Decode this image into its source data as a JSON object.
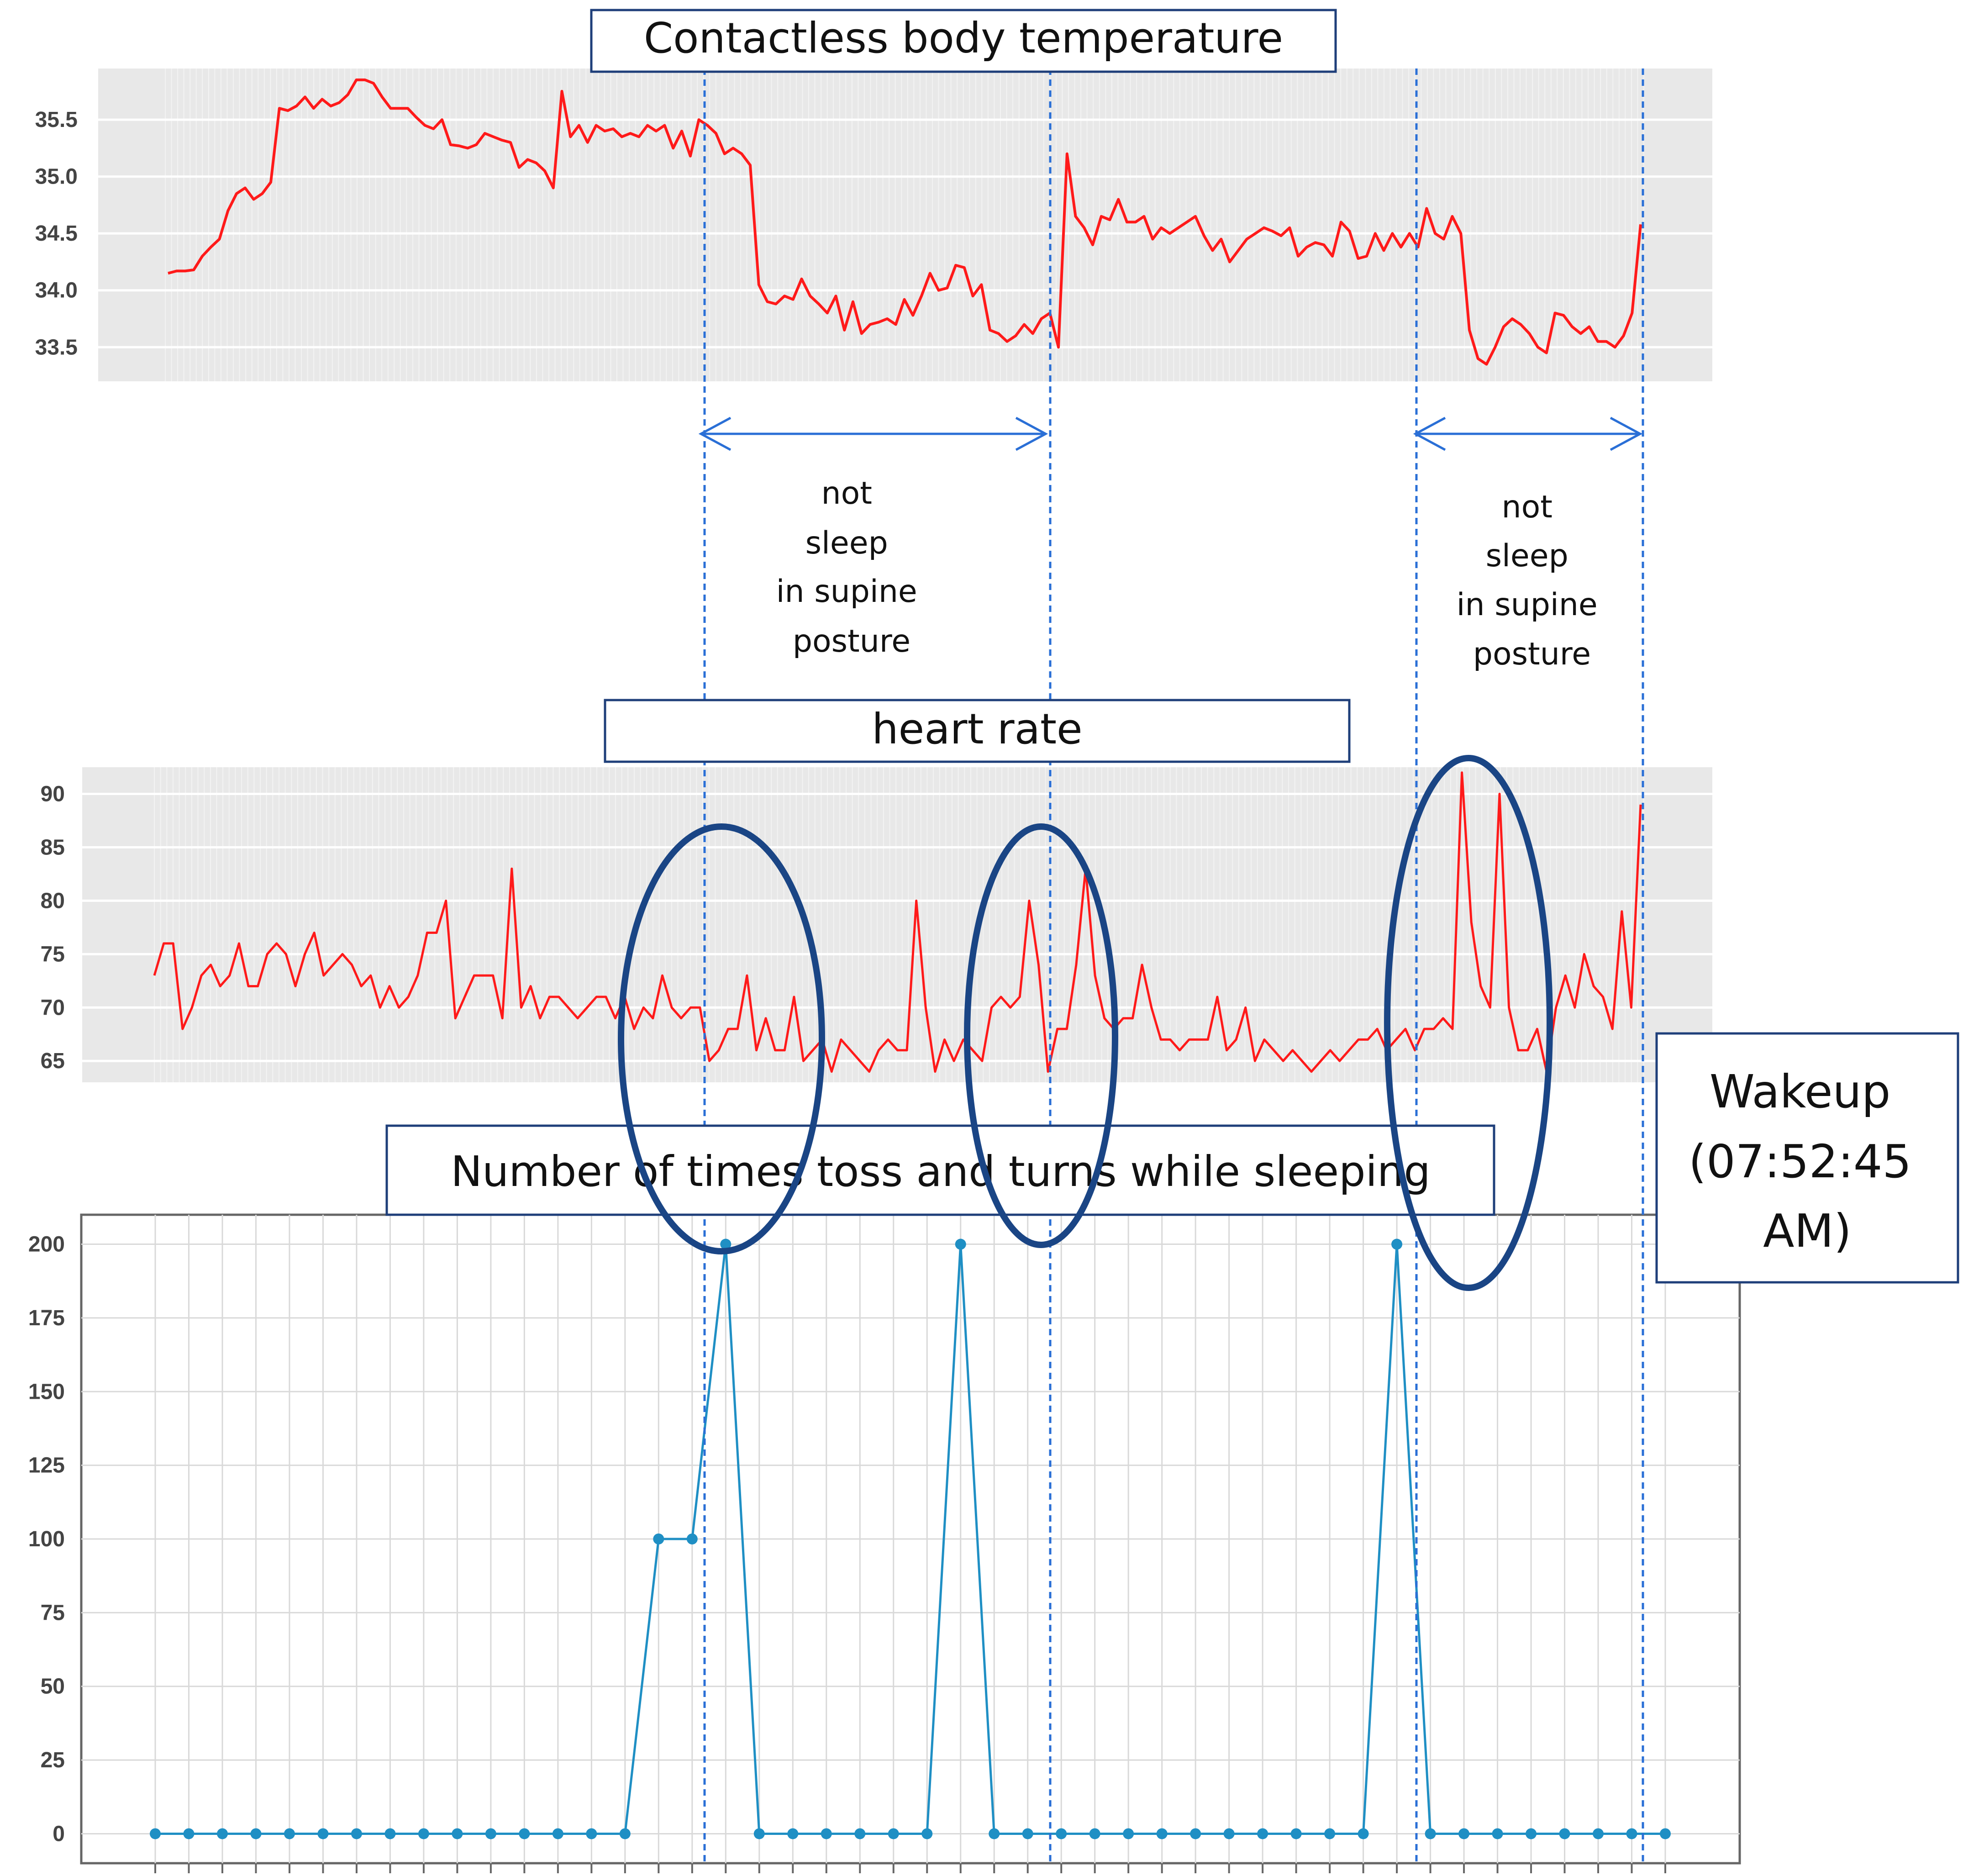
{
  "charts": {
    "temperature": {
      "title": "Contactless body temperature",
      "yticks": [
        "35.5",
        "35.0",
        "34.5",
        "34.0",
        "33.5"
      ]
    },
    "heart_rate": {
      "title": "heart rate",
      "yticks": [
        "90",
        "85",
        "80",
        "75",
        "70",
        "65"
      ]
    },
    "toss_turns": {
      "title": "Number of times toss and turns while sleeping",
      "yticks": [
        "200",
        "175",
        "150",
        "125",
        "100",
        "75",
        "50",
        "25",
        "0"
      ]
    }
  },
  "annotations": {
    "not_sleep_1": [
      "not",
      "sleep",
      "in  supine",
      "posture"
    ],
    "not_sleep_2": [
      "not",
      "sleep",
      "in  supine",
      "posture"
    ],
    "wakeup": [
      "Wakeup",
      "(07:52:45",
      "AM)"
    ]
  },
  "colors": {
    "temperature_line": "#ff1a1a",
    "heart_rate_line": "#ff1a1a",
    "toss_line": "#1f8fc4",
    "ellipse": "#1a4585",
    "guide_line": "#2a6fd6",
    "plot_bg": "#e8e8e8"
  },
  "chart_data": [
    {
      "type": "line",
      "title": "Contactless body temperature",
      "xlabel": "",
      "ylabel": "",
      "ylim": [
        33.2,
        35.95
      ],
      "grid": true,
      "series": [
        {
          "values": [
            34.15,
            34.17,
            34.17,
            34.18,
            34.3,
            34.38,
            34.45,
            34.7,
            34.85,
            34.9,
            34.8,
            34.85,
            34.95,
            35.6,
            35.58,
            35.62,
            35.7,
            35.6,
            35.68,
            35.62,
            35.65,
            35.72,
            35.85,
            35.85,
            35.82,
            35.7,
            35.6,
            35.6,
            35.6,
            35.52,
            35.45,
            35.42,
            35.5,
            35.28,
            35.27,
            35.25,
            35.28,
            35.38,
            35.35,
            35.32,
            35.3,
            35.08,
            35.15,
            35.12,
            35.05,
            34.9,
            35.75,
            35.35,
            35.45,
            35.3,
            35.45,
            35.4,
            35.42,
            35.35,
            35.38,
            35.35,
            35.45,
            35.4,
            35.45,
            35.25,
            35.4,
            35.18,
            35.5,
            35.45,
            35.38,
            35.2,
            35.25,
            35.2,
            35.1,
            34.05,
            33.9,
            33.88,
            33.95,
            33.92,
            34.1,
            33.95,
            33.88,
            33.8,
            33.95,
            33.65,
            33.9,
            33.62,
            33.7,
            33.72,
            33.75,
            33.7,
            33.92,
            33.78,
            33.95,
            34.15,
            34.0,
            34.02,
            34.22,
            34.2,
            33.95,
            34.05,
            33.65,
            33.62,
            33.55,
            33.6,
            33.7,
            33.62,
            33.75,
            33.8,
            33.5,
            35.2,
            34.65,
            34.55,
            34.4,
            34.65,
            34.62,
            34.8,
            34.6,
            34.6,
            34.65,
            34.45,
            34.55,
            34.5,
            34.55,
            34.6,
            34.65,
            34.48,
            34.35,
            34.45,
            34.25,
            34.35,
            34.45,
            34.5,
            34.55,
            34.52,
            34.48,
            34.55,
            34.3,
            34.38,
            34.42,
            34.4,
            34.3,
            34.6,
            34.52,
            34.28,
            34.3,
            34.5,
            34.35,
            34.5,
            34.38,
            34.5,
            34.38,
            34.72,
            34.5,
            34.45,
            34.65,
            34.5,
            33.65,
            33.4,
            33.35,
            33.5,
            33.68,
            33.75,
            33.7,
            33.62,
            33.5,
            33.45,
            33.8,
            33.78,
            33.68,
            33.62,
            33.68,
            33.55,
            33.55,
            33.5,
            33.6,
            33.8,
            34.58
          ]
        }
      ]
    },
    {
      "type": "line",
      "title": "heart rate",
      "xlabel": "",
      "ylabel": "",
      "ylim": [
        63,
        92.5
      ],
      "grid": true,
      "series": [
        {
          "values": [
            73,
            76,
            76,
            68,
            70,
            73,
            74,
            72,
            73,
            76,
            72,
            72,
            75,
            76,
            75,
            72,
            75,
            77,
            73,
            74,
            75,
            74,
            72,
            73,
            70,
            72,
            70,
            71,
            73,
            77,
            77,
            80,
            69,
            71,
            73,
            73,
            73,
            69,
            83,
            70,
            72,
            69,
            71,
            71,
            70,
            69,
            70,
            71,
            71,
            69,
            71,
            68,
            70,
            69,
            73,
            70,
            69,
            70,
            70,
            65,
            66,
            68,
            68,
            73,
            66,
            69,
            66,
            66,
            71,
            65,
            66,
            67,
            64,
            67,
            66,
            65,
            64,
            66,
            67,
            66,
            66,
            80,
            70,
            64,
            67,
            65,
            67,
            66,
            65,
            70,
            71,
            70,
            71,
            80,
            74,
            64,
            68,
            68,
            74,
            83,
            73,
            69,
            68,
            69,
            69,
            74,
            70,
            67,
            67,
            66,
            67,
            67,
            67,
            71,
            66,
            67,
            70,
            65,
            67,
            66,
            65,
            66,
            65,
            64,
            65,
            66,
            65,
            66,
            67,
            67,
            68,
            66,
            67,
            68,
            66,
            68,
            68,
            69,
            68,
            92,
            78,
            72,
            70,
            90,
            70,
            66,
            66,
            68,
            64,
            70,
            73,
            70,
            75,
            72,
            71,
            68,
            79,
            70,
            89
          ]
        }
      ]
    },
    {
      "type": "line",
      "title": "Number of times toss and turns while sleeping",
      "xlabel": "",
      "ylabel": "",
      "ylim": [
        -10,
        210
      ],
      "grid": true,
      "series": [
        {
          "values": [
            0,
            0,
            0,
            0,
            0,
            0,
            0,
            0,
            0,
            0,
            0,
            0,
            0,
            0,
            0,
            100,
            100,
            200,
            0,
            0,
            0,
            0,
            0,
            0,
            200,
            0,
            0,
            0,
            0,
            0,
            0,
            0,
            0,
            0,
            0,
            0,
            0,
            200,
            0,
            0,
            0,
            0,
            0,
            0,
            0,
            0
          ]
        }
      ]
    }
  ]
}
